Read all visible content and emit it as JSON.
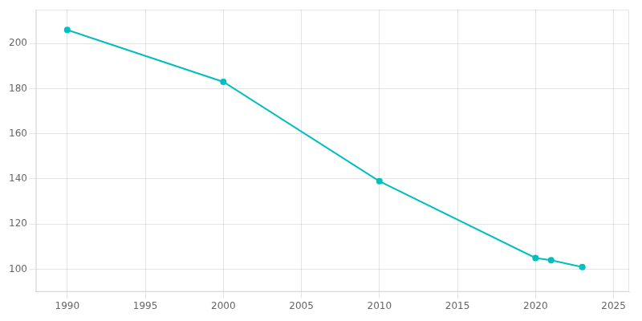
{
  "chart_data": {
    "type": "line",
    "x": [
      1990,
      2000,
      2010,
      2020,
      2021,
      2023
    ],
    "values": [
      206,
      183,
      139,
      105,
      104,
      101
    ],
    "color": "#00BFBF",
    "marker": "circle",
    "xlim": [
      1988,
      2026
    ],
    "xticks": [
      1990,
      1995,
      2000,
      2005,
      2010,
      2015,
      2020,
      2025
    ],
    "ylim": [
      90,
      215
    ],
    "yticks": [
      100,
      120,
      140,
      160,
      180,
      200
    ],
    "grid": true
  }
}
